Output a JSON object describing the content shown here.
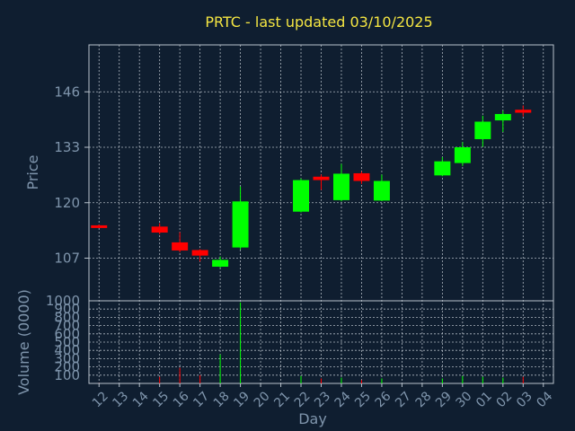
{
  "title": "PRTC - last updated 03/10/2025",
  "colors": {
    "up": "#00ff00",
    "down": "#ff0000",
    "background": "#0f1e30",
    "title": "#f5e642",
    "label": "#7f95ac"
  },
  "chart_data": {
    "type": "candlestick",
    "title": "PRTC - last updated 03/10/2025",
    "xlabel": "Day",
    "price_axis": {
      "label": "Price",
      "ticks": [
        107,
        120,
        133,
        146
      ],
      "range": [
        97,
        157
      ]
    },
    "volume_axis": {
      "label": "Volume (0000)",
      "ticks": [
        100,
        200,
        300,
        400,
        500,
        600,
        700,
        800,
        900,
        1000
      ],
      "range": [
        0,
        1000
      ]
    },
    "grid": true,
    "days": [
      "12",
      "13",
      "14",
      "15",
      "16",
      "17",
      "18",
      "19",
      "20",
      "21",
      "22",
      "23",
      "24",
      "25",
      "26",
      "27",
      "28",
      "29",
      "30",
      "01",
      "02",
      "03",
      "04"
    ],
    "candles": [
      {
        "day": "12",
        "open": 114.7,
        "close": 114.3,
        "high": 114.9,
        "low": 114.1,
        "volume": 2
      },
      {
        "day": "15",
        "open": 114.4,
        "close": 113.0,
        "high": 115.2,
        "low": 112.6,
        "volume": 80
      },
      {
        "day": "16",
        "open": 110.7,
        "close": 108.8,
        "high": 113.1,
        "low": 108.4,
        "volume": 190
      },
      {
        "day": "17",
        "open": 108.9,
        "close": 107.6,
        "high": 109.1,
        "low": 106.2,
        "volume": 100
      },
      {
        "day": "18",
        "open": 105.0,
        "close": 106.6,
        "high": 107.4,
        "low": 104.8,
        "volume": 350
      },
      {
        "day": "19",
        "open": 109.5,
        "close": 120.3,
        "high": 123.8,
        "low": 109.0,
        "volume": 980
      },
      {
        "day": "22",
        "open": 117.9,
        "close": 125.3,
        "high": 125.7,
        "low": 117.7,
        "volume": 90
      },
      {
        "day": "23",
        "open": 126.1,
        "close": 125.3,
        "high": 126.6,
        "low": 123.0,
        "volume": 60
      },
      {
        "day": "24",
        "open": 120.6,
        "close": 126.8,
        "high": 129.1,
        "low": 120.3,
        "volume": 70
      },
      {
        "day": "25",
        "open": 126.9,
        "close": 125.1,
        "high": 127.3,
        "low": 124.4,
        "volume": 40
      },
      {
        "day": "26",
        "open": 120.5,
        "close": 125.1,
        "high": 126.6,
        "low": 120.4,
        "volume": 60
      },
      {
        "day": "29",
        "open": 126.4,
        "close": 129.7,
        "high": 130.7,
        "low": 126.2,
        "volume": 60
      },
      {
        "day": "30",
        "open": 129.3,
        "close": 133.0,
        "high": 134.2,
        "low": 128.6,
        "volume": 90
      },
      {
        "day": "01",
        "open": 134.9,
        "close": 139.0,
        "high": 140.4,
        "low": 133.1,
        "volume": 80
      },
      {
        "day": "02",
        "open": 139.3,
        "close": 140.8,
        "high": 141.6,
        "low": 136.6,
        "volume": 70
      },
      {
        "day": "03",
        "open": 141.8,
        "close": 141.1,
        "high": 142.8,
        "low": 140.2,
        "volume": 80
      }
    ]
  }
}
